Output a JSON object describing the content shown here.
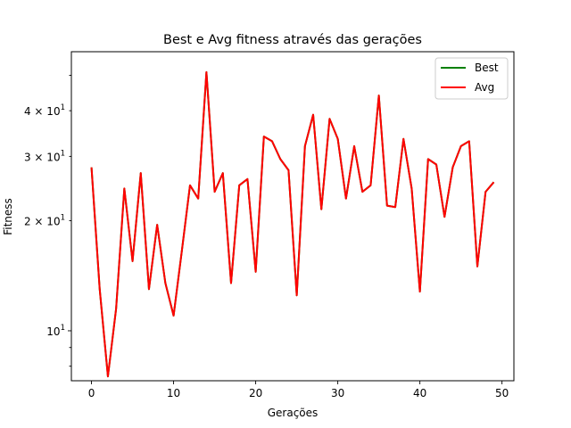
{
  "chart_data": {
    "type": "line",
    "title": "Best e Avg fitness através das gerações",
    "xlabel": "Gerações",
    "ylabel": "Fitness",
    "xlim": [
      -2.45,
      51.45
    ],
    "ylim": [
      7.3,
      58
    ],
    "yscale": "log",
    "grid": false,
    "legend_position": "upper right",
    "x_ticks": [
      {
        "value": 0,
        "label": "0"
      },
      {
        "value": 10,
        "label": "10"
      },
      {
        "value": 20,
        "label": "20"
      },
      {
        "value": 30,
        "label": "30"
      },
      {
        "value": 40,
        "label": "40"
      },
      {
        "value": 50,
        "label": "50"
      }
    ],
    "y_major_ticks": [
      {
        "value": 10,
        "label": "10",
        "sup": "1"
      }
    ],
    "y_minor_ticks": [
      {
        "value": 8,
        "label": ""
      },
      {
        "value": 9,
        "label": ""
      },
      {
        "value": 20,
        "label": "2 × 10",
        "sup": "1"
      },
      {
        "value": 30,
        "label": "3 × 10",
        "sup": "1"
      },
      {
        "value": 40,
        "label": "4 × 10",
        "sup": "1"
      },
      {
        "value": 50,
        "label": ""
      }
    ],
    "x": [
      0,
      1,
      2,
      3,
      4,
      5,
      6,
      7,
      8,
      9,
      10,
      11,
      12,
      13,
      14,
      15,
      16,
      17,
      18,
      19,
      20,
      21,
      22,
      23,
      24,
      25,
      26,
      27,
      28,
      29,
      30,
      31,
      32,
      33,
      34,
      35,
      36,
      37,
      38,
      39,
      40,
      41,
      42,
      43,
      44,
      45,
      46,
      47,
      48,
      49
    ],
    "series": [
      {
        "name": "Best",
        "color": "#008000",
        "values": [
          28,
          13,
          7.5,
          11.5,
          24.5,
          15.5,
          27,
          13,
          19.5,
          13.5,
          11,
          16.5,
          25,
          23,
          51,
          24,
          27,
          13.5,
          25,
          26,
          14.5,
          34,
          33,
          29.5,
          27.5,
          12.5,
          32,
          39,
          21.5,
          38,
          33.5,
          23,
          32,
          24,
          25,
          44,
          22,
          21.8,
          33.5,
          24.5,
          12.8,
          29.5,
          28.5,
          20.5,
          28,
          32,
          33,
          15,
          24,
          25.5
        ]
      },
      {
        "name": "Avg",
        "color": "#ff0000",
        "values": [
          28,
          13,
          7.5,
          11.5,
          24.5,
          15.5,
          27,
          13,
          19.5,
          13.5,
          11,
          16.5,
          25,
          23,
          51,
          24,
          27,
          13.5,
          25,
          26,
          14.5,
          34,
          33,
          29.5,
          27.5,
          12.5,
          32,
          39,
          21.5,
          38,
          33.5,
          23,
          32,
          24,
          25,
          44,
          22,
          21.8,
          33.5,
          24.5,
          12.8,
          29.5,
          28.5,
          20.5,
          28,
          32,
          33,
          15,
          24,
          25.5
        ]
      }
    ]
  }
}
